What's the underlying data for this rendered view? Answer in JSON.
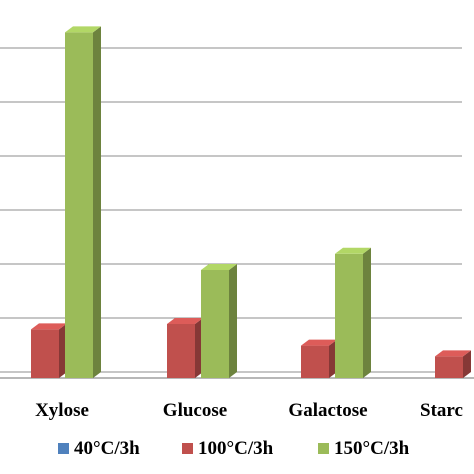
{
  "chart_data": {
    "type": "bar",
    "style": "3d-clustered-column",
    "categories": [
      "Xylose",
      "Glucose",
      "Galactose",
      "Starch"
    ],
    "category_labels_visible": [
      "Xylose",
      "Glucose",
      "Galactose",
      "Starc"
    ],
    "series": [
      {
        "name": "40°C/3h",
        "color": "#4f81bd",
        "values": [
          0,
          0,
          0,
          0
        ]
      },
      {
        "name": "100°C/3h",
        "color": "#c0504d",
        "values": [
          0.9,
          1.0,
          0.6,
          0.4
        ]
      },
      {
        "name": "150°C/3h",
        "color": "#9bbb59",
        "values": [
          6.4,
          2.0,
          2.3,
          0
        ]
      }
    ],
    "ylim": [
      0,
      7
    ],
    "grid": true,
    "legend": "bottom"
  }
}
